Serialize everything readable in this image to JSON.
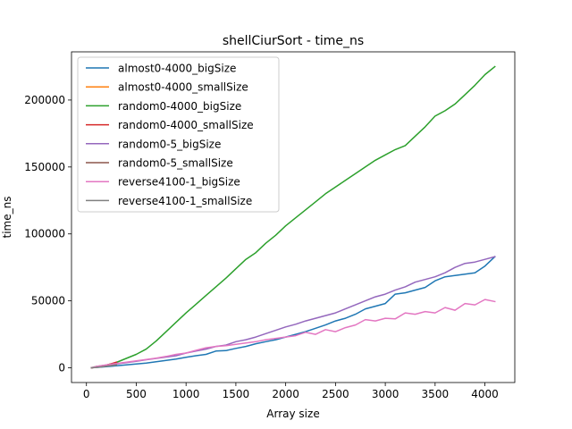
{
  "chart_data": {
    "type": "line",
    "title": "shellCiurSort - time_ns",
    "xlabel": "Array size",
    "ylabel": "time_ns",
    "xlim": [
      -150,
      4300
    ],
    "ylim": [
      -11000,
      236000
    ],
    "xticks": [
      0,
      500,
      1000,
      1500,
      2000,
      2500,
      3000,
      3500,
      4000
    ],
    "yticks": [
      0,
      50000,
      100000,
      150000,
      200000
    ],
    "grid": false,
    "legend_position": "top-left",
    "series": [
      {
        "name": "almost0-4000_bigSize",
        "color": "#1f77b4",
        "x": [
          50,
          100,
          200,
          300,
          400,
          500,
          600,
          700,
          800,
          900,
          1000,
          1100,
          1200,
          1300,
          1400,
          1500,
          1600,
          1700,
          1800,
          1900,
          2000,
          2100,
          2200,
          2300,
          2400,
          2500,
          2600,
          2700,
          2800,
          2900,
          3000,
          3100,
          3200,
          3300,
          3400,
          3500,
          3600,
          3700,
          3800,
          3900,
          4000,
          4100
        ],
        "y": [
          0,
          300,
          900,
          1500,
          2200,
          2900,
          3500,
          4500,
          5500,
          6500,
          7800,
          9000,
          10000,
          12500,
          12800,
          14500,
          16000,
          18000,
          19500,
          21000,
          23000,
          25000,
          27000,
          29500,
          32000,
          35000,
          37000,
          40000,
          44000,
          46000,
          48000,
          55000,
          56000,
          58000,
          60000,
          65000,
          68000,
          69000,
          70000,
          71000,
          76000,
          83000
        ]
      },
      {
        "name": "almost0-4000_smallSize",
        "color": "#ff7f0e",
        "x": [
          50,
          100,
          150,
          200,
          250,
          300
        ],
        "y": [
          0,
          400,
          900,
          1500,
          2200,
          3000
        ]
      },
      {
        "name": "random0-4000_bigSize",
        "color": "#2ca02c",
        "x": [
          50,
          100,
          200,
          300,
          400,
          500,
          600,
          700,
          800,
          900,
          1000,
          1100,
          1200,
          1300,
          1400,
          1500,
          1600,
          1700,
          1800,
          1900,
          2000,
          2100,
          2200,
          2300,
          2400,
          2500,
          2600,
          2700,
          2800,
          2900,
          3000,
          3100,
          3200,
          3300,
          3400,
          3500,
          3600,
          3700,
          3800,
          3900,
          4000,
          4100
        ],
        "y": [
          0,
          1000,
          2000,
          4000,
          7000,
          10000,
          14000,
          20000,
          27000,
          34000,
          41000,
          47500,
          54000,
          60500,
          67000,
          74000,
          81000,
          86000,
          93000,
          99000,
          106000,
          112000,
          118000,
          124000,
          130000,
          135000,
          140000,
          145000,
          150000,
          155000,
          159000,
          163000,
          166000,
          173000,
          180000,
          188000,
          192000,
          197000,
          204000,
          211000,
          219000,
          225000
        ]
      },
      {
        "name": "random0-4000_smallSize",
        "color": "#d62728",
        "x": [
          50,
          100,
          150,
          200,
          250,
          300
        ],
        "y": [
          0,
          500,
          1200,
          2000,
          3000,
          4200
        ]
      },
      {
        "name": "random0-5_bigSize",
        "color": "#9467bd",
        "x": [
          50,
          100,
          200,
          300,
          400,
          500,
          600,
          700,
          800,
          900,
          1000,
          1100,
          1200,
          1300,
          1400,
          1500,
          1600,
          1700,
          1800,
          1900,
          2000,
          2100,
          2200,
          2300,
          2400,
          2500,
          2600,
          2700,
          2800,
          2900,
          3000,
          3100,
          3200,
          3300,
          3400,
          3500,
          3600,
          3700,
          3800,
          3900,
          4000,
          4100
        ],
        "y": [
          0,
          800,
          1800,
          2800,
          3800,
          4800,
          6000,
          7000,
          8000,
          9000,
          11000,
          12500,
          14000,
          16000,
          17000,
          19500,
          21000,
          23000,
          25500,
          28000,
          30500,
          32500,
          35000,
          37000,
          39000,
          41000,
          44000,
          47000,
          50000,
          53000,
          55000,
          58000,
          60500,
          64000,
          66000,
          68000,
          71000,
          75000,
          78000,
          79000,
          81000,
          83000
        ]
      },
      {
        "name": "random0-5_smallSize",
        "color": "#8c564b",
        "x": [
          50,
          100,
          150,
          200,
          250,
          300
        ],
        "y": [
          0,
          400,
          900,
          1400,
          2000,
          2600
        ]
      },
      {
        "name": "reverse4100-1_bigSize",
        "color": "#e377c2",
        "x": [
          50,
          100,
          200,
          300,
          400,
          500,
          600,
          700,
          800,
          900,
          1000,
          1100,
          1200,
          1300,
          1400,
          1500,
          1600,
          1700,
          1800,
          1900,
          2000,
          2100,
          2200,
          2300,
          2400,
          2500,
          2600,
          2700,
          2800,
          2900,
          3000,
          3100,
          3200,
          3300,
          3400,
          3500,
          3600,
          3700,
          3800,
          3900,
          4000,
          4100
        ],
        "y": [
          0,
          1000,
          2200,
          3200,
          4200,
          5200,
          6200,
          7200,
          8500,
          10000,
          11000,
          13000,
          15000,
          16000,
          16500,
          17500,
          18500,
          19500,
          21000,
          22000,
          23000,
          24000,
          26500,
          25000,
          28500,
          27000,
          30000,
          32000,
          36000,
          35000,
          37000,
          36500,
          41000,
          40000,
          42000,
          41000,
          45000,
          43000,
          48000,
          47000,
          51000,
          49500
        ]
      },
      {
        "name": "reverse4100-1_smallSize",
        "color": "#7f7f7f",
        "x": [
          50,
          100,
          150,
          200,
          250,
          300
        ],
        "y": [
          0,
          300,
          700,
          1100,
          1600,
          2100
        ]
      }
    ]
  }
}
